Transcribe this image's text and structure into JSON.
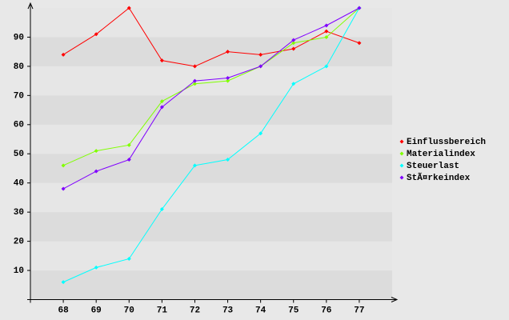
{
  "chart_data": {
    "type": "line",
    "categories": [
      "68",
      "69",
      "70",
      "71",
      "72",
      "73",
      "74",
      "75",
      "76",
      "77"
    ],
    "series": [
      {
        "name": "Einflussbereich",
        "color": "#ff0000",
        "values": [
          84,
          91,
          100,
          82,
          80,
          85,
          84,
          86,
          92,
          88
        ]
      },
      {
        "name": "Materialindex",
        "color": "#80ff00",
        "values": [
          46,
          51,
          53,
          68,
          74,
          75,
          80,
          88,
          90,
          100
        ]
      },
      {
        "name": "Steuerlast",
        "color": "#00ffff",
        "values": [
          6,
          11,
          14,
          31,
          46,
          48,
          57,
          74,
          80,
          100
        ]
      },
      {
        "name": "StÃ¤rkeindex",
        "color": "#8000ff",
        "values": [
          38,
          44,
          48,
          66,
          75,
          76,
          80,
          89,
          94,
          100
        ]
      }
    ],
    "ylim": [
      0,
      100
    ],
    "yticks": [
      10,
      20,
      30,
      40,
      50,
      60,
      70,
      80,
      90
    ],
    "grid": true,
    "legend": "right"
  }
}
